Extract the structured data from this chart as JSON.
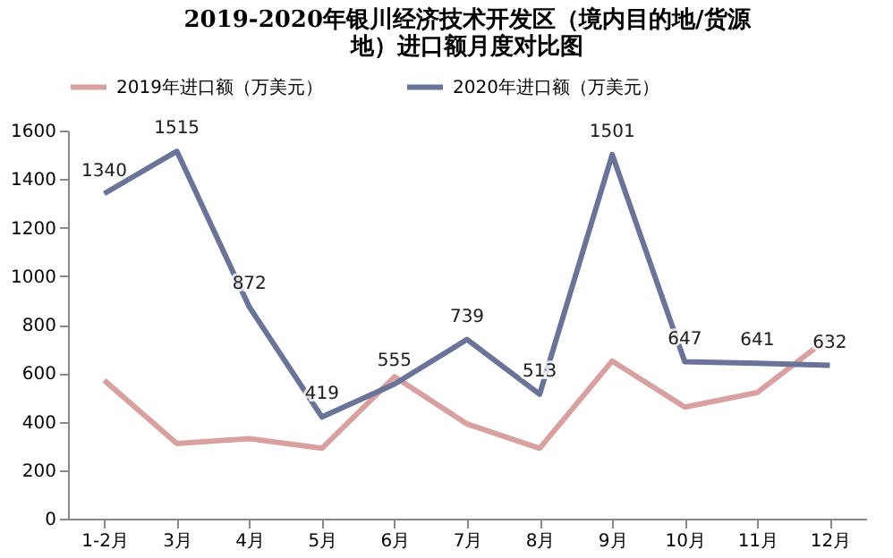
{
  "chart_data": {
    "type": "line",
    "title": "2019-2020年银川经济技术开发区（境内目的地/货源地）进口额月度对比图",
    "categories": [
      "1-2月",
      "3月",
      "4月",
      "5月",
      "6月",
      "7月",
      "8月",
      "9月",
      "10月",
      "11月",
      "12月"
    ],
    "series": [
      {
        "name": "2019年进口额（万美元）",
        "color": "#d9a0a0",
        "values": [
          570,
          310,
          330,
          290,
          585,
          390,
          290,
          650,
          460,
          520,
          750
        ]
      },
      {
        "name": "2020年进口额（万美元）",
        "color": "#6a7398",
        "values": [
          1340,
          1515,
          872,
          419,
          555,
          739,
          513,
          1501,
          647,
          641,
          632
        ],
        "value_labels": [
          "1340",
          "1515",
          "872",
          "419",
          "555",
          "739",
          "513",
          "1501",
          "647",
          "641",
          "632"
        ]
      }
    ],
    "ylim": [
      0,
      1600
    ],
    "yticks": [
      0,
      200,
      400,
      600,
      800,
      1000,
      1200,
      1400,
      1600
    ],
    "grid": false,
    "legend": "top",
    "marker": "none",
    "line_style": "solid"
  }
}
